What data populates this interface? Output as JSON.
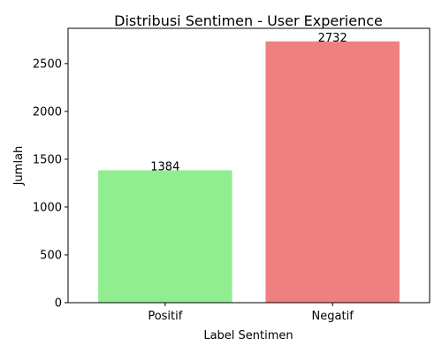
{
  "chart_data": {
    "type": "bar",
    "title": "Distribusi Sentimen - User Experience",
    "xlabel": "Label Sentimen",
    "ylabel": "Jumlah",
    "categories": [
      "Positif",
      "Negatif"
    ],
    "values": [
      1384,
      2732
    ],
    "data_labels": [
      "1384",
      "2732"
    ],
    "colors": [
      "#90ee90",
      "#f08080"
    ],
    "ylim": [
      0,
      2868.6
    ],
    "yticks": [
      0,
      500,
      1000,
      1500,
      2000,
      2500
    ],
    "ytick_labels": [
      "0",
      "500",
      "1000",
      "1500",
      "2000",
      "2500"
    ],
    "grid": false,
    "legend": "none"
  }
}
